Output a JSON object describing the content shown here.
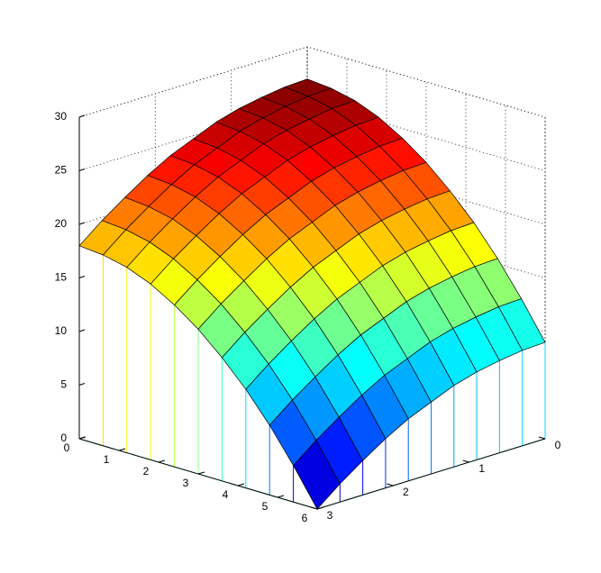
{
  "chart_data": {
    "type": "surface",
    "colormap": "jet",
    "grid": true,
    "x": [
      0,
      0.6,
      1.2,
      1.8,
      2.4,
      3,
      3.6,
      4.2,
      4.8,
      5.4,
      6
    ],
    "y": [
      0,
      0.3,
      0.6,
      0.9,
      1.2,
      1.5,
      1.8,
      2.1,
      2.4,
      2.7,
      3
    ],
    "z": [
      [
        27,
        26.8,
        26.3,
        25.4,
        24.1,
        22.5,
        20.5,
        18.2,
        15.5,
        12.4,
        9
      ],
      [
        26.9,
        26.7,
        26.2,
        25.3,
        24,
        22.4,
        20.4,
        18.1,
        15.4,
        12.3,
        8.9
      ],
      [
        26.6,
        26.4,
        25.9,
        25,
        23.7,
        22.1,
        20.1,
        17.8,
        15.1,
        12,
        8.6
      ],
      [
        26.2,
        26,
        25.5,
        24.6,
        23.3,
        21.7,
        19.7,
        17.4,
        14.7,
        11.6,
        8.2
      ],
      [
        25.6,
        25.4,
        24.9,
        24,
        22.7,
        21.1,
        19.1,
        16.8,
        14.1,
        11,
        7.6
      ],
      [
        24.7,
        24.5,
        24,
        23.1,
        21.8,
        20.2,
        18.2,
        15.9,
        13.2,
        10.1,
        6.7
      ],
      [
        23.8,
        23.6,
        23.1,
        22.2,
        20.9,
        19.3,
        17.3,
        15,
        12.3,
        9.2,
        5.8
      ],
      [
        22.6,
        22.4,
        21.9,
        21,
        19.7,
        18.1,
        16.1,
        13.8,
        11.1,
        8,
        4.6
      ],
      [
        21.2,
        21,
        20.5,
        19.6,
        18.3,
        16.7,
        14.7,
        12.4,
        9.7,
        6.6,
        3.2
      ],
      [
        19.7,
        19.5,
        19,
        18.1,
        16.8,
        15.2,
        13.2,
        10.9,
        8.2,
        5.1,
        1.7
      ],
      [
        18,
        17.8,
        17.3,
        16.4,
        15.1,
        13.5,
        11.5,
        9.2,
        6.5,
        3.4,
        0
      ]
    ],
    "xlim": [
      0,
      6
    ],
    "ylim": [
      0,
      3
    ],
    "zlim": [
      0,
      30
    ],
    "xticks": [
      0,
      1,
      2,
      3,
      4,
      5,
      6
    ],
    "yticks": [
      0,
      1,
      2,
      3
    ],
    "zticks": [
      0,
      5,
      10,
      15,
      20,
      25,
      30
    ]
  }
}
